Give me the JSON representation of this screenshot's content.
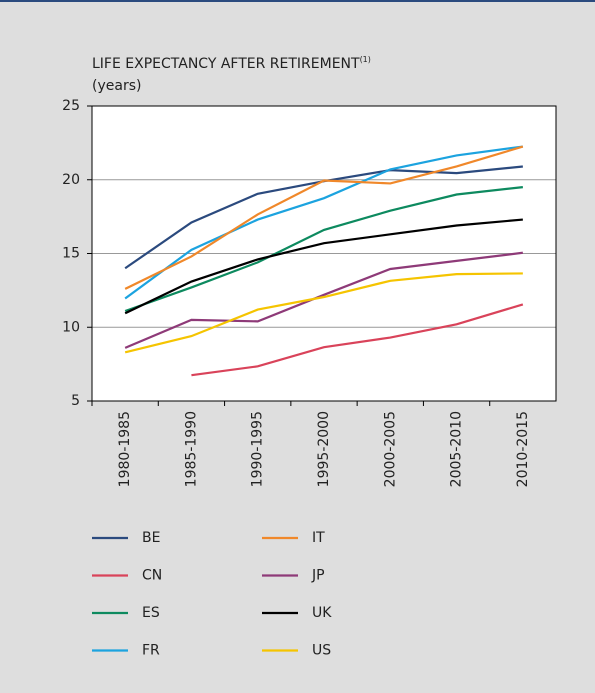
{
  "chart_data": {
    "type": "line",
    "title": "LIFE EXPECTANCY AFTER RETIREMENT",
    "title_note": "(1)",
    "subtitle": "(years)",
    "categories": [
      "1980-1985",
      "1985-1990",
      "1990-1995",
      "1995-2000",
      "2000-2005",
      "2005-2010",
      "2010-2015"
    ],
    "series": [
      {
        "name": "BE",
        "color": "#2b4a7e",
        "values": [
          14,
          17.1,
          19.05,
          19.9,
          20.65,
          20.45,
          20.9
        ]
      },
      {
        "name": "CN",
        "color": "#d9435a",
        "values": [
          null,
          6.75,
          7.35,
          8.65,
          9.3,
          10.2,
          11.55
        ]
      },
      {
        "name": "ES",
        "color": "#0d8a5f",
        "values": [
          11.1,
          12.7,
          14.4,
          16.6,
          17.9,
          19,
          19.5
        ]
      },
      {
        "name": "FR",
        "color": "#1ca3df",
        "values": [
          11.95,
          15.25,
          17.3,
          18.75,
          20.7,
          21.65,
          22.25
        ]
      },
      {
        "name": "IT",
        "color": "#f0882a",
        "values": [
          12.6,
          14.8,
          17.65,
          19.95,
          19.75,
          20.9,
          22.25
        ]
      },
      {
        "name": "JP",
        "color": "#8e3a78",
        "values": [
          8.6,
          10.5,
          10.4,
          12.2,
          13.95,
          14.5,
          15.05
        ]
      },
      {
        "name": "UK",
        "color": "#000000",
        "values": [
          10.95,
          13.1,
          14.6,
          15.7,
          16.3,
          16.9,
          17.3
        ]
      },
      {
        "name": "US",
        "color": "#f5c400",
        "values": [
          8.3,
          9.4,
          11.2,
          12.05,
          13.15,
          13.6,
          13.65
        ]
      }
    ],
    "ylim": [
      5,
      25
    ],
    "yticks": [
      5,
      10,
      15,
      20,
      25
    ],
    "grid": true,
    "legend": "bottom"
  }
}
